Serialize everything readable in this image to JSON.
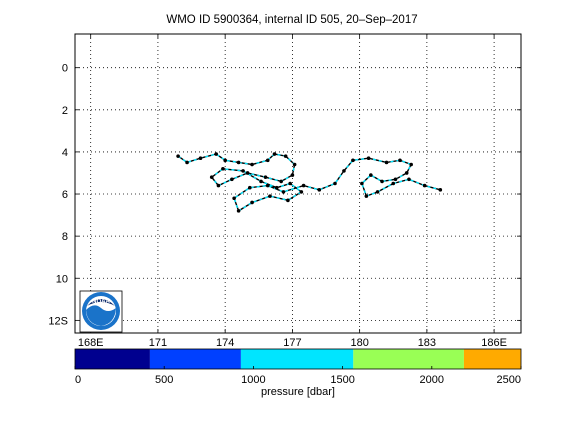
{
  "chart_data": {
    "type": "line",
    "title": "WMO ID 5900364, internal ID 505, 20–Sep–2017",
    "x_ticks": [
      "168E",
      "171",
      "174",
      "177",
      "180",
      "183",
      "186E"
    ],
    "x_tick_values": [
      168,
      171,
      174,
      177,
      180,
      183,
      186
    ],
    "y_ticks": [
      "0",
      "2",
      "4",
      "6",
      "8",
      "10",
      "12S"
    ],
    "y_tick_values": [
      0,
      2,
      4,
      6,
      8,
      10,
      12
    ],
    "xlim": [
      167.3,
      187.2
    ],
    "ylim": [
      -1.6,
      12.6
    ],
    "grid": true,
    "trajectory": [
      [
        171.9,
        4.2
      ],
      [
        172.3,
        4.5
      ],
      [
        172.9,
        4.3
      ],
      [
        173.6,
        4.1
      ],
      [
        174.0,
        4.4
      ],
      [
        174.6,
        4.5
      ],
      [
        175.2,
        4.6
      ],
      [
        175.9,
        4.4
      ],
      [
        176.2,
        4.1
      ],
      [
        176.7,
        4.2
      ],
      [
        177.1,
        4.6
      ],
      [
        177.0,
        5.1
      ],
      [
        176.5,
        5.4
      ],
      [
        175.8,
        5.2
      ],
      [
        175.0,
        5.0
      ],
      [
        174.3,
        5.3
      ],
      [
        173.7,
        5.6
      ],
      [
        173.4,
        5.2
      ],
      [
        173.9,
        4.8
      ],
      [
        174.8,
        4.9
      ],
      [
        175.6,
        5.4
      ],
      [
        176.3,
        5.7
      ],
      [
        176.9,
        5.5
      ],
      [
        177.4,
        5.9
      ],
      [
        176.8,
        6.3
      ],
      [
        176.0,
        6.1
      ],
      [
        175.2,
        6.4
      ],
      [
        174.6,
        6.8
      ],
      [
        174.4,
        6.2
      ],
      [
        175.1,
        5.7
      ],
      [
        175.9,
        5.6
      ],
      [
        176.6,
        5.9
      ],
      [
        177.5,
        5.6
      ],
      [
        178.2,
        5.8
      ],
      [
        178.9,
        5.5
      ],
      [
        179.3,
        4.9
      ],
      [
        179.7,
        4.4
      ],
      [
        180.4,
        4.3
      ],
      [
        181.2,
        4.5
      ],
      [
        181.8,
        4.4
      ],
      [
        182.3,
        4.6
      ],
      [
        182.1,
        5.0
      ],
      [
        181.6,
        5.3
      ],
      [
        181.0,
        5.4
      ],
      [
        180.5,
        5.1
      ],
      [
        180.1,
        5.5
      ],
      [
        180.3,
        6.1
      ],
      [
        180.8,
        5.9
      ],
      [
        181.5,
        5.5
      ],
      [
        182.2,
        5.3
      ],
      [
        182.9,
        5.6
      ],
      [
        183.6,
        5.8
      ]
    ],
    "colorbar": {
      "label": "pressure [dbar]",
      "ticks": [
        "0",
        "500",
        "1000",
        "1500",
        "2000",
        "2500"
      ],
      "tick_values": [
        0,
        500,
        1000,
        1500,
        2000,
        2500
      ],
      "range": [
        0,
        2500
      ],
      "bands": [
        {
          "from": 0,
          "to": 420,
          "color": "#00008f"
        },
        {
          "from": 420,
          "to": 930,
          "color": "#0040ff"
        },
        {
          "from": 930,
          "to": 1560,
          "color": "#00e5ff"
        },
        {
          "from": 1560,
          "to": 2180,
          "color": "#99ff55"
        },
        {
          "from": 2180,
          "to": 2500,
          "color": "#ffaa00"
        }
      ]
    },
    "line_color": "#00e5ff",
    "marker_color": "#000000"
  },
  "logo_text": "NOAA"
}
